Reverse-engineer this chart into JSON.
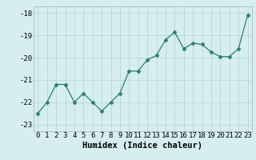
{
  "title": "",
  "xlabel": "Humidex (Indice chaleur)",
  "ylabel": "",
  "x": [
    0,
    1,
    2,
    3,
    4,
    5,
    6,
    7,
    8,
    9,
    10,
    11,
    12,
    13,
    14,
    15,
    16,
    17,
    18,
    19,
    20,
    21,
    22,
    23
  ],
  "y": [
    -22.5,
    -22.0,
    -21.2,
    -21.2,
    -22.0,
    -21.6,
    -22.0,
    -22.4,
    -22.0,
    -21.6,
    -20.6,
    -20.6,
    -20.1,
    -19.9,
    -19.2,
    -18.85,
    -19.6,
    -19.35,
    -19.4,
    -19.75,
    -19.95,
    -19.95,
    -19.6,
    -18.1
  ],
  "line_color": "#2e7d6e",
  "marker": "D",
  "marker_size": 2.5,
  "bg_color": "#d6eeee",
  "grid_color": "#b8d8d8",
  "ylim": [
    -23.3,
    -17.7
  ],
  "yticks": [
    -23,
    -22,
    -21,
    -20,
    -19,
    -18
  ],
  "xticks": [
    0,
    1,
    2,
    3,
    4,
    5,
    6,
    7,
    8,
    9,
    10,
    11,
    12,
    13,
    14,
    15,
    16,
    17,
    18,
    19,
    20,
    21,
    22,
    23
  ],
  "tick_fontsize": 6.5,
  "label_fontsize": 7.5
}
